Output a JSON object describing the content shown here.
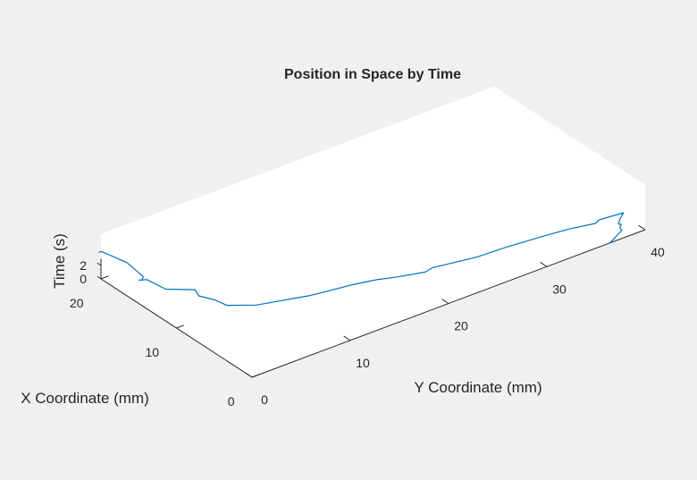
{
  "window": {
    "background": "#f0f0f0"
  },
  "chart_data": {
    "type": "line",
    "projection": "3d",
    "title": "Position in Space by Time",
    "xlabel": "X Coordinate (mm)",
    "ylabel": "Y Coordinate (mm)",
    "zlabel": "Time (s)",
    "xlim": [
      0,
      20
    ],
    "ylim": [
      0,
      40
    ],
    "zlim": [
      0,
      3
    ],
    "xticks": [
      {
        "v": 0,
        "label": "0"
      },
      {
        "v": 10,
        "label": "10"
      },
      {
        "v": 20,
        "label": "20"
      }
    ],
    "yticks": [
      {
        "v": 0,
        "label": "0"
      },
      {
        "v": 10,
        "label": "10"
      },
      {
        "v": 20,
        "label": "20"
      },
      {
        "v": 30,
        "label": "30"
      },
      {
        "v": 40,
        "label": "40"
      }
    ],
    "zticks": [
      {
        "v": 0,
        "label": "0"
      },
      {
        "v": 2,
        "label": "2"
      }
    ],
    "grid": false,
    "series": [
      {
        "color": "#0072bd",
        "points": [
          [
            0.0,
            36.4,
            0.0
          ],
          [
            0.25,
            36.9,
            0.02
          ],
          [
            0.5,
            37.4,
            0.04
          ],
          [
            0.75,
            37.9,
            0.06
          ],
          [
            1.0,
            38.4,
            0.08
          ],
          [
            1.2,
            38.4,
            0.1
          ],
          [
            1.4,
            38.5,
            0.2
          ],
          [
            1.6,
            38.8,
            0.3
          ],
          [
            1.6,
            38.5,
            0.5
          ],
          [
            1.9,
            38.9,
            0.8
          ],
          [
            2.2,
            39.5,
            1.2
          ],
          [
            2.2,
            37.0,
            1.5
          ],
          [
            1.8,
            36.3,
            1.65
          ],
          [
            2.2,
            34.0,
            1.8
          ],
          [
            2.4,
            32.0,
            1.9
          ],
          [
            2.7,
            28.0,
            2.05
          ],
          [
            2.8,
            25.0,
            2.1
          ],
          [
            3.1,
            23.0,
            2.2
          ],
          [
            3.4,
            21.0,
            2.3
          ],
          [
            3.1,
            20.0,
            2.4
          ],
          [
            3.8,
            17.5,
            2.5
          ],
          [
            4.3,
            16.0,
            2.6
          ],
          [
            4.7,
            14.0,
            2.7
          ],
          [
            5.3,
            10.0,
            2.8
          ],
          [
            6.6,
            5.5,
            2.9
          ],
          [
            7.9,
            3.5,
            3.0
          ],
          [
            9.1,
            3.2,
            3.1
          ],
          [
            10.3,
            2.5,
            3.2
          ],
          [
            11.2,
            2.8,
            3.3
          ],
          [
            12.6,
            0.9,
            3.4
          ],
          [
            14.7,
            0.6,
            3.45
          ],
          [
            15.0,
            0.0,
            3.5
          ],
          [
            14.8,
            0.2,
            3.52
          ],
          [
            15.2,
            0.6,
            3.55
          ],
          [
            17.7,
            0.9,
            3.6
          ],
          [
            20.3,
            0.3,
            3.7
          ],
          [
            20.3,
            0.0,
            3.75
          ]
        ]
      }
    ]
  }
}
